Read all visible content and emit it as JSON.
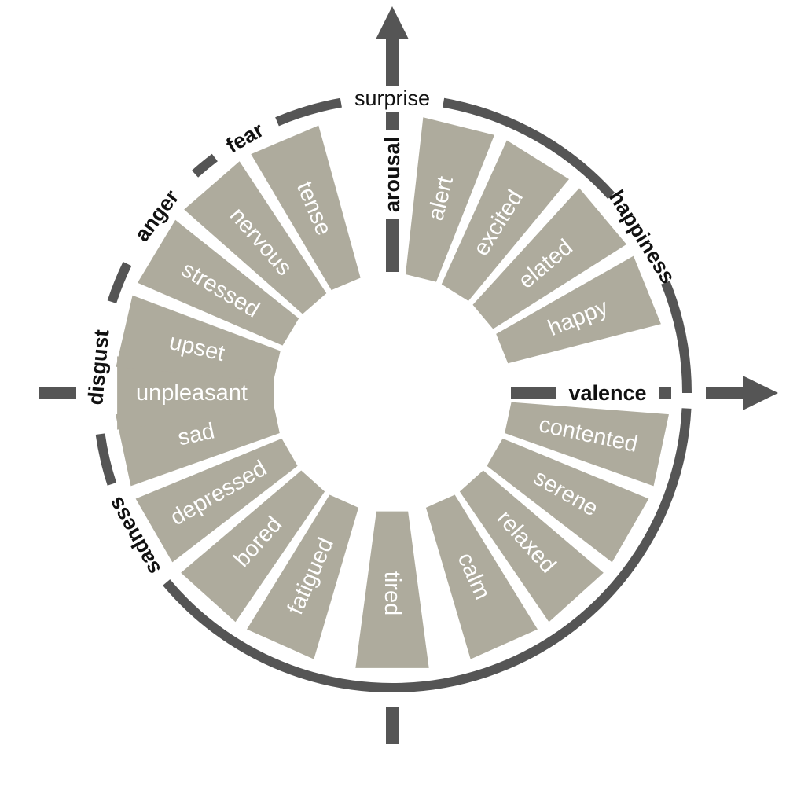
{
  "colors": {
    "segment": "#aeab9d",
    "ring": "#555555",
    "axis": "#555555",
    "segment_text": "#ffffff",
    "label_text": "#111111"
  },
  "axes": {
    "vertical_label": "arousal",
    "horizontal_label": "valence"
  },
  "segments": [
    "alert",
    "excited",
    "elated",
    "happy",
    "contented",
    "serene",
    "relaxed",
    "calm",
    "tired",
    "fatigued",
    "bored",
    "depressed",
    "sad",
    "unpleasant",
    "upset",
    "stressed",
    "nervous",
    "tense"
  ],
  "emotions": [
    "surprise",
    "happiness",
    "sadness",
    "disgust",
    "anger",
    "fear"
  ]
}
